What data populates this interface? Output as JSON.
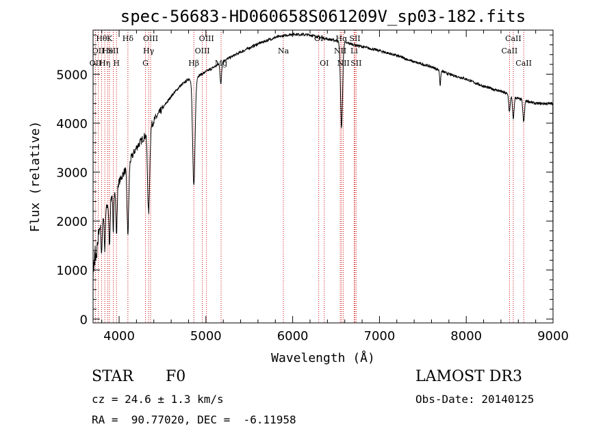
{
  "chart_data": {
    "type": "line",
    "title": "spec-56683-HD060658S061209V_sp03-182.fits",
    "xlabel": "Wavelength (Å)",
    "ylabel": "Flux (relative)",
    "xlim": [
      3700,
      9000
    ],
    "ylim": [
      -80,
      5900
    ],
    "xticks": [
      4000,
      5000,
      6000,
      7000,
      8000,
      9000
    ],
    "yticks": [
      0,
      1000,
      2000,
      3000,
      4000,
      5000
    ],
    "line_color": "#000000",
    "marker_color": "#cc0000",
    "continuum": [
      [
        3700,
        1300
      ],
      [
        3750,
        1700
      ],
      [
        3800,
        2000
      ],
      [
        3850,
        2250
      ],
      [
        3900,
        2450
      ],
      [
        3950,
        2650
      ],
      [
        4000,
        2800
      ],
      [
        4100,
        3150
      ],
      [
        4200,
        3500
      ],
      [
        4300,
        3750
      ],
      [
        4400,
        4050
      ],
      [
        4500,
        4300
      ],
      [
        4600,
        4550
      ],
      [
        4700,
        4750
      ],
      [
        4800,
        4900
      ],
      [
        4900,
        4950
      ],
      [
        5000,
        5050
      ],
      [
        5100,
        5150
      ],
      [
        5200,
        5270
      ],
      [
        5400,
        5450
      ],
      [
        5600,
        5620
      ],
      [
        5800,
        5750
      ],
      [
        6000,
        5820
      ],
      [
        6200,
        5800
      ],
      [
        6400,
        5720
      ],
      [
        6600,
        5650
      ],
      [
        6800,
        5560
      ],
      [
        7000,
        5480
      ],
      [
        7200,
        5380
      ],
      [
        7400,
        5250
      ],
      [
        7600,
        5150
      ],
      [
        7800,
        5000
      ],
      [
        8000,
        4900
      ],
      [
        8200,
        4750
      ],
      [
        8400,
        4650
      ],
      [
        8600,
        4500
      ],
      [
        8800,
        4400
      ],
      [
        9000,
        4400
      ]
    ],
    "absorption": [
      {
        "w": 3798,
        "depth": 700,
        "width": 6
      },
      {
        "w": 3835,
        "depth": 800,
        "width": 6
      },
      {
        "w": 3889,
        "depth": 900,
        "width": 7
      },
      {
        "w": 3933,
        "depth": 900,
        "width": 5
      },
      {
        "w": 3970,
        "depth": 1000,
        "width": 7
      },
      {
        "w": 4101,
        "depth": 1400,
        "width": 10
      },
      {
        "w": 4340,
        "depth": 1700,
        "width": 12
      },
      {
        "w": 4861,
        "depth": 2200,
        "width": 14
      },
      {
        "w": 5172,
        "depth": 450,
        "width": 8
      },
      {
        "w": 6563,
        "depth": 1750,
        "width": 12
      },
      {
        "w": 7700,
        "depth": 300,
        "width": 6
      },
      {
        "w": 8498,
        "depth": 350,
        "width": 8
      },
      {
        "w": 8542,
        "depth": 450,
        "width": 9
      },
      {
        "w": 8662,
        "depth": 450,
        "width": 9
      }
    ],
    "lines": [
      {
        "w": 3727,
        "label": "OII",
        "row": 2
      },
      {
        "w": 3760,
        "label": "OII",
        "row": 1
      },
      {
        "w": 3798,
        "label": "Hθ",
        "row": 0
      },
      {
        "w": 3835,
        "label": "Hη",
        "row": 2
      },
      {
        "w": 3869,
        "label": "He",
        "row": 1
      },
      {
        "w": 3889,
        "label": "K",
        "row": 0
      },
      {
        "w": 3933,
        "label": "SII",
        "row": 1
      },
      {
        "w": 3970,
        "label": "H",
        "row": 2
      },
      {
        "w": 4101,
        "label": "Hδ",
        "row": 0
      },
      {
        "w": 4304,
        "label": "G",
        "row": 2
      },
      {
        "w": 4340,
        "label": "Hγ",
        "row": 1
      },
      {
        "w": 4363,
        "label": "OIII",
        "row": 0
      },
      {
        "w": 4861,
        "label": "Hβ",
        "row": 2
      },
      {
        "w": 4959,
        "label": "OIII",
        "row": 1
      },
      {
        "w": 5007,
        "label": "OIII",
        "row": 0
      },
      {
        "w": 5175,
        "label": "Mg",
        "row": 2
      },
      {
        "w": 5893,
        "label": "Na",
        "row": 1
      },
      {
        "w": 6300,
        "label": "OI",
        "row": 0
      },
      {
        "w": 6364,
        "label": "OI",
        "row": 2
      },
      {
        "w": 6548,
        "label": "NII",
        "row": 1
      },
      {
        "w": 6563,
        "label": "Hα",
        "row": 0
      },
      {
        "w": 6584,
        "label": "NII",
        "row": 2
      },
      {
        "w": 6708,
        "label": "Li",
        "row": 1
      },
      {
        "w": 6717,
        "label": "SII",
        "row": 0
      },
      {
        "w": 6731,
        "label": "SII",
        "row": 2
      },
      {
        "w": 8498,
        "label": "CaII",
        "row": 1
      },
      {
        "w": 8542,
        "label": "CaII",
        "row": 0
      },
      {
        "w": 8662,
        "label": "CaII",
        "row": 2
      }
    ]
  },
  "info": {
    "class_label": "STAR",
    "subclass_label": "F0",
    "survey_label": "LAMOST DR3",
    "redshift_text": "cz = 24.6 ± 1.3 km/s",
    "obs_date_text": "Obs-Date: 20140125",
    "coords_text": "RA =  90.77020, DEC =  -6.11958"
  }
}
